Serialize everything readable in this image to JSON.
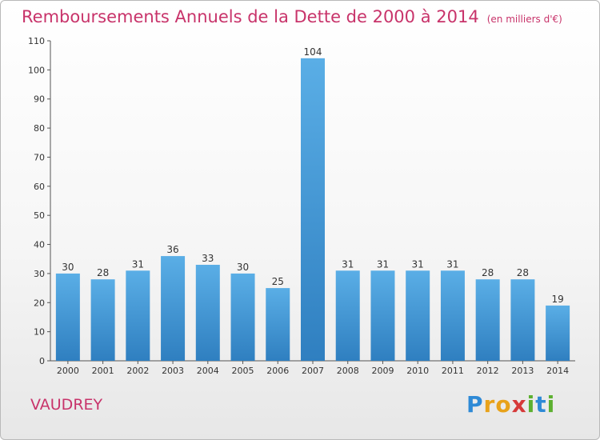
{
  "chart_data": {
    "type": "bar",
    "title": "Remboursements Annuels de la Dette de 2000 à 2014",
    "subtitle": "(en milliers d'€)",
    "categories": [
      "2000",
      "2001",
      "2002",
      "2003",
      "2004",
      "2005",
      "2006",
      "2007",
      "2008",
      "2009",
      "2010",
      "2011",
      "2012",
      "2013",
      "2014"
    ],
    "values": [
      30,
      28,
      31,
      36,
      33,
      30,
      25,
      104,
      31,
      31,
      31,
      31,
      28,
      28,
      19
    ],
    "ylim": [
      0,
      110
    ],
    "yticks": [
      0,
      10,
      20,
      30,
      40,
      50,
      60,
      70,
      80,
      90,
      100,
      110
    ],
    "grid": false,
    "bar_color_top": "#5aaee6",
    "bar_color_bottom": "#2f7fc0"
  },
  "location": "VAUDREY",
  "brand": {
    "name": "Proxiti",
    "letters": [
      "P",
      "r",
      "o",
      "x",
      "i",
      "t",
      "i"
    ],
    "colors": [
      "#2e8ad6",
      "#e8a21a",
      "#e8a21a",
      "#d63a3a",
      "#5cb030",
      "#2e8ad6",
      "#5cb030"
    ]
  }
}
